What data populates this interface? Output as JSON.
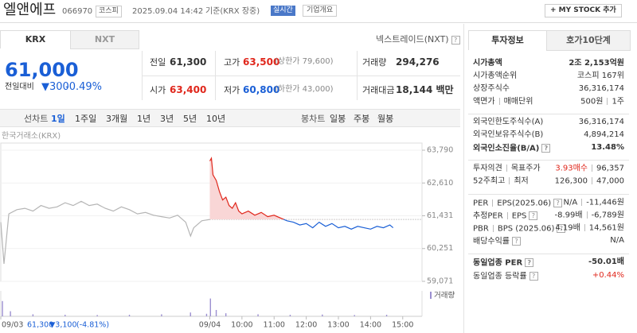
{
  "header": {
    "name": "엘앤에프",
    "code": "066970",
    "market": "코스피",
    "time": "2025.09.04 14:42",
    "basis": "기준(KRX 장중)",
    "realtime": "실시간",
    "overview": "기업개요",
    "mystock": "+ MY STOCK 추가"
  },
  "help_icon": "?",
  "tabs": [
    "KRX",
    "NXT"
  ],
  "nxt_link": "넥스트레이드(NXT)",
  "price": {
    "current": "61,000",
    "change_label": "전일대비",
    "change": "▼300",
    "rate": "-0.49%"
  },
  "summary": [
    [
      {
        "label": "전일",
        "value": "61,300"
      },
      {
        "label": "고가",
        "value": "63,500",
        "sub": "(상한가 79,600)",
        "color": "#e0271c"
      },
      {
        "label": "거래량",
        "value": "294,276"
      }
    ],
    [
      {
        "label": "시가",
        "value": "63,400",
        "color": "#e0271c"
      },
      {
        "label": "저가",
        "value": "60,800",
        "sub": "(하한가 43,000)",
        "color": "#1a5fd6"
      },
      {
        "label": "거래대금",
        "value": "18,144 백만"
      }
    ]
  ],
  "periods": {
    "line_label": "선차트",
    "line": [
      "1일",
      "1주일",
      "3개월",
      "1년",
      "3년",
      "5년",
      "10년"
    ],
    "selected": 0,
    "candle_label": "봉차트",
    "candle": [
      "일봉",
      "주봉",
      "월봉"
    ]
  },
  "chart_data": {
    "type": "line",
    "source": "한국거래소(KRX)",
    "ylim": [
      59071,
      63790
    ],
    "yticks": [
      {
        "value": 63790,
        "label": "63,790"
      },
      {
        "value": 62610,
        "label": "62,610"
      },
      {
        "value": 61431,
        "label": "61,431"
      },
      {
        "value": 60251,
        "label": "60,251"
      },
      {
        "value": 59071,
        "label": "59,071"
      }
    ],
    "xlim": [
      0,
      13.1
    ],
    "xticks": [
      {
        "value": 0,
        "label": "09/03"
      },
      {
        "value": 6.5,
        "label": "09/04"
      },
      {
        "value": 7.5,
        "label": "10:00"
      },
      {
        "value": 8.5,
        "label": "11:00"
      },
      {
        "value": 9.5,
        "label": "12:00"
      },
      {
        "value": 10.5,
        "label": "13:00"
      },
      {
        "value": 11.5,
        "label": "14:00"
      },
      {
        "value": 12.5,
        "label": "15:00"
      }
    ],
    "reference": 61300,
    "grid": true,
    "series": [
      {
        "color": "#b5b5b5",
        "x": [
          0,
          0.1,
          0.25,
          0.5,
          0.75,
          1,
          1.25,
          1.5,
          1.75,
          2,
          2.25,
          2.5,
          2.75,
          3,
          3.25,
          3.5,
          3.75,
          4,
          4.25,
          4.5,
          4.75,
          5,
          5.25,
          5.5,
          5.75,
          5.9,
          6,
          6.25,
          6.5
        ],
        "values": [
          61200,
          59700,
          61500,
          61650,
          61700,
          61600,
          61800,
          61700,
          61750,
          61900,
          61800,
          61950,
          61800,
          61850,
          61700,
          61600,
          61750,
          61650,
          61500,
          61550,
          61450,
          61400,
          61350,
          61450,
          61200,
          60700,
          61000,
          61250,
          61300
        ]
      },
      {
        "color": "#e0271c",
        "color_below": "#1a5fd6",
        "fill": "#f9d6d6",
        "x": [
          6.5,
          6.55,
          6.6,
          6.7,
          6.8,
          6.9,
          7,
          7.1,
          7.2,
          7.3,
          7.4,
          7.5,
          7.7,
          7.9,
          8.1,
          8.3,
          8.5,
          8.7,
          8.9,
          9.1,
          9.3,
          9.5,
          9.7,
          9.9,
          10.1,
          10.3,
          10.5,
          10.7,
          10.9,
          11.1,
          11.3,
          11.5,
          11.7,
          11.9,
          12.1,
          12.2
        ],
        "values": [
          63400,
          63500,
          62900,
          62700,
          62300,
          62000,
          62100,
          61800,
          61700,
          61900,
          61600,
          61500,
          61600,
          61450,
          61550,
          61400,
          61450,
          61350,
          61250,
          61200,
          61100,
          61150,
          61000,
          61200,
          61050,
          61150,
          61000,
          61050,
          60950,
          61050,
          61000,
          60950,
          61050,
          61000,
          61100,
          61000
        ]
      }
    ],
    "volume": {
      "name": "거래량",
      "color": "#9b8fd0",
      "ylim": [
        0,
        100
      ],
      "x": [
        0.05,
        0.3,
        1,
        2,
        3,
        4,
        5,
        5.9,
        6.4,
        6.52,
        6.7,
        7,
        8,
        9,
        10,
        11,
        12
      ],
      "values": [
        60,
        20,
        8,
        6,
        5,
        6,
        8,
        15,
        10,
        70,
        25,
        12,
        8,
        6,
        7,
        5,
        6
      ]
    },
    "info": {
      "date": "09/03",
      "price": "61,300",
      "change": "▼3,100",
      "rate": "(-4.81%)"
    }
  },
  "invest": {
    "tabs": [
      "투자정보",
      "호가10단계"
    ],
    "groups": [
      [
        {
          "label": [
            "시가총액"
          ],
          "value": [
            "2조 2,153억원"
          ],
          "bold": true
        },
        {
          "label": [
            "시가총액순위"
          ],
          "value": [
            "코스피 167위"
          ]
        },
        {
          "label": [
            "상장주식수"
          ],
          "value": [
            "36,316,174"
          ]
        },
        {
          "label": [
            "액면가",
            "매매단위"
          ],
          "value": [
            "500원",
            "1주"
          ]
        }
      ],
      [
        {
          "label": [
            "외국인한도주식수(A)"
          ],
          "value": [
            "36,316,174"
          ]
        },
        {
          "label": [
            "외국인보유주식수(B)"
          ],
          "value": [
            "4,894,214"
          ]
        },
        {
          "label": [
            "외국인소진율(B/A)"
          ],
          "value": [
            "13.48%"
          ],
          "bold": true,
          "help": true
        }
      ],
      [
        {
          "label": [
            "투자의견",
            "목표주가"
          ],
          "value": [
            "3.93매수",
            "96,357"
          ],
          "value_colors": [
            "#e0271c",
            "#333"
          ]
        },
        {
          "label": [
            "52주최고",
            "최저"
          ],
          "value": [
            "126,300",
            "47,000"
          ]
        }
      ],
      [
        {
          "label": [
            "PER",
            "EPS(2025.06)"
          ],
          "value": [
            "N/A",
            "-11,446원"
          ],
          "help": true
        },
        {
          "label": [
            "추정PER",
            "EPS"
          ],
          "value": [
            "-8.99배",
            "-6,789원"
          ],
          "help": true
        },
        {
          "label": [
            "PBR",
            "BPS (2025.06)"
          ],
          "value": [
            "4.19배",
            "14,561원"
          ],
          "help": true
        },
        {
          "label": [
            "배당수익률"
          ],
          "value": [
            "N/A"
          ],
          "help": true
        }
      ],
      [
        {
          "label": [
            "동일업종 PER"
          ],
          "value": [
            "-50.01배"
          ],
          "bold": true,
          "help": true
        },
        {
          "label": [
            "동일업종 등락률"
          ],
          "value": [
            "+0.44%"
          ],
          "help": true,
          "value_colors": [
            "#e0271c"
          ]
        }
      ]
    ]
  }
}
